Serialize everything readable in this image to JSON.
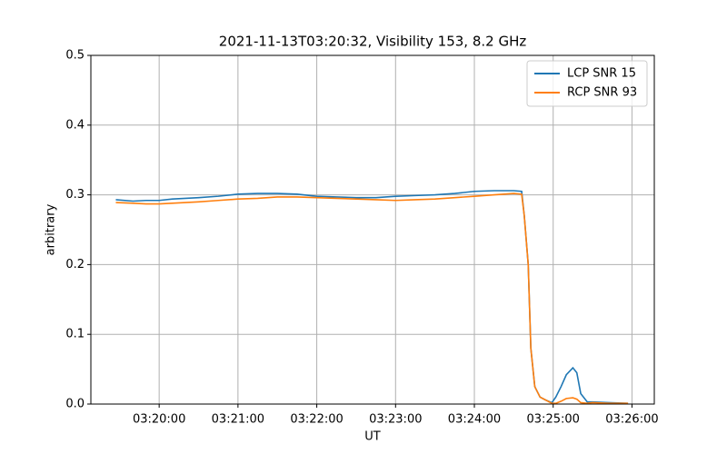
{
  "chart_data": {
    "type": "line",
    "title": "2021-11-13T03:20:32, Visibility 153, 8.2 GHz",
    "xlabel": "UT",
    "ylabel": "arbitrary",
    "x": [
      "03:19:27",
      "03:19:40",
      "03:19:50",
      "03:20:00",
      "03:20:10",
      "03:20:20",
      "03:20:30",
      "03:20:45",
      "03:21:00",
      "03:21:15",
      "03:21:30",
      "03:21:45",
      "03:22:00",
      "03:22:15",
      "03:22:30",
      "03:22:45",
      "03:23:00",
      "03:23:15",
      "03:23:30",
      "03:23:45",
      "03:24:00",
      "03:24:15",
      "03:24:30",
      "03:24:36",
      "03:24:38",
      "03:24:41",
      "03:24:43",
      "03:24:46",
      "03:24:50",
      "03:24:54",
      "03:24:59",
      "03:25:02",
      "03:25:06",
      "03:25:10",
      "03:25:15",
      "03:25:18",
      "03:25:21",
      "03:25:26",
      "03:25:30",
      "03:25:42",
      "03:25:57"
    ],
    "series": [
      {
        "name": "LCP SNR 15",
        "color": "#1f77b4",
        "values": [
          0.293,
          0.291,
          0.292,
          0.292,
          0.294,
          0.295,
          0.296,
          0.298,
          0.301,
          0.302,
          0.302,
          0.301,
          0.298,
          0.297,
          0.296,
          0.296,
          0.298,
          0.299,
          0.3,
          0.302,
          0.305,
          0.306,
          0.306,
          0.305,
          0.27,
          0.2,
          0.08,
          0.025,
          0.01,
          0.006,
          0.002,
          0.01,
          0.025,
          0.042,
          0.052,
          0.045,
          0.015,
          0.003,
          0.003,
          0.002,
          0.001
        ]
      },
      {
        "name": "RCP SNR 93",
        "color": "#ff7f0e",
        "values": [
          0.289,
          0.288,
          0.287,
          0.287,
          0.288,
          0.289,
          0.29,
          0.292,
          0.294,
          0.295,
          0.297,
          0.297,
          0.296,
          0.295,
          0.294,
          0.293,
          0.292,
          0.293,
          0.294,
          0.296,
          0.298,
          0.3,
          0.302,
          0.301,
          0.27,
          0.2,
          0.08,
          0.025,
          0.01,
          0.006,
          0.001,
          0.001,
          0.004,
          0.008,
          0.009,
          0.007,
          0.002,
          0.001,
          0.002,
          0.001,
          0.001
        ]
      }
    ],
    "xlim": [
      "03:19:08",
      "03:26:17"
    ],
    "xticks": [
      "03:20:00",
      "03:21:00",
      "03:22:00",
      "03:23:00",
      "03:24:00",
      "03:25:00",
      "03:26:00"
    ],
    "ylim": [
      0,
      0.5
    ],
    "yticks": [
      {
        "value": 0,
        "label": "0.0"
      },
      0.1,
      0.2,
      0.3,
      0.4,
      0.5
    ],
    "grid": true,
    "legend": "upper right"
  }
}
